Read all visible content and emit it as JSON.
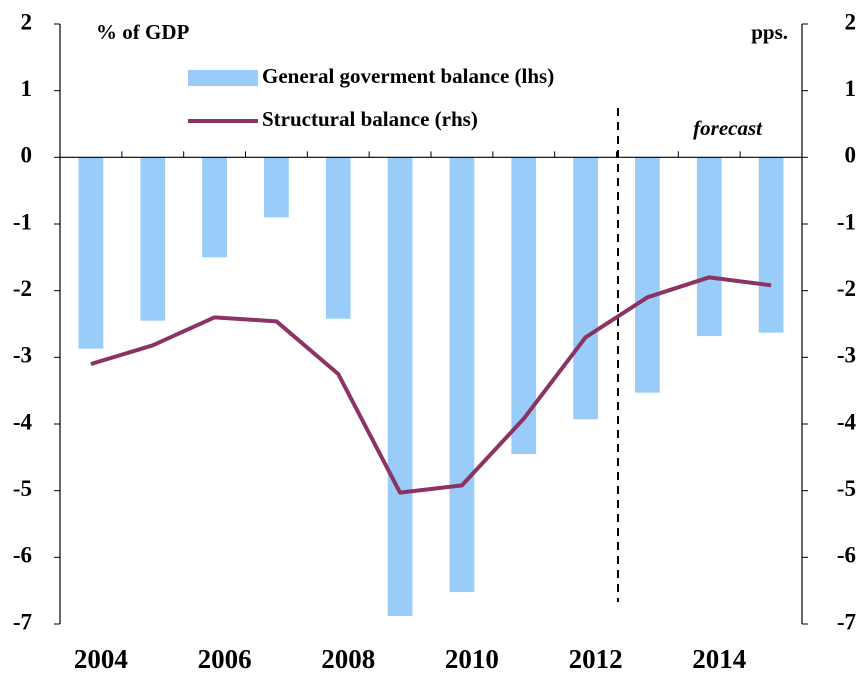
{
  "chart_data": {
    "type": "bar_line",
    "y_label": "% of GDP",
    "y2_label": "pps.",
    "annotation": "forecast",
    "categories": [
      "2004",
      null,
      "2006",
      null,
      "2008",
      null,
      "2010",
      null,
      "2012",
      null,
      "2014",
      null
    ],
    "series": [
      {
        "name": "General goverment balance (lhs)",
        "type": "bar",
        "color": "#99ccf8",
        "axis": "y",
        "values": [
          -2.87,
          -2.45,
          -1.5,
          -0.9,
          -2.42,
          -6.88,
          -6.52,
          -4.45,
          -3.93,
          -3.53,
          -2.68,
          -2.63
        ]
      },
      {
        "name": "Structural balance (rhs)",
        "type": "line",
        "color": "#8b3362",
        "axis": "y2",
        "values": [
          -3.1,
          -2.82,
          -2.4,
          -2.46,
          -3.25,
          -5.03,
          -4.92,
          -3.92,
          -2.7,
          -2.1,
          -1.8,
          -1.92
        ]
      }
    ],
    "ylim": [
      -7,
      2
    ],
    "yticks": [
      2,
      1,
      0,
      -1,
      -2,
      -3,
      -4,
      -5,
      -6,
      -7
    ],
    "y2lim": [
      -7,
      2
    ],
    "y2ticks": [
      2,
      1,
      0,
      -1,
      -2,
      -3,
      -4,
      -5,
      -6,
      -7
    ]
  }
}
